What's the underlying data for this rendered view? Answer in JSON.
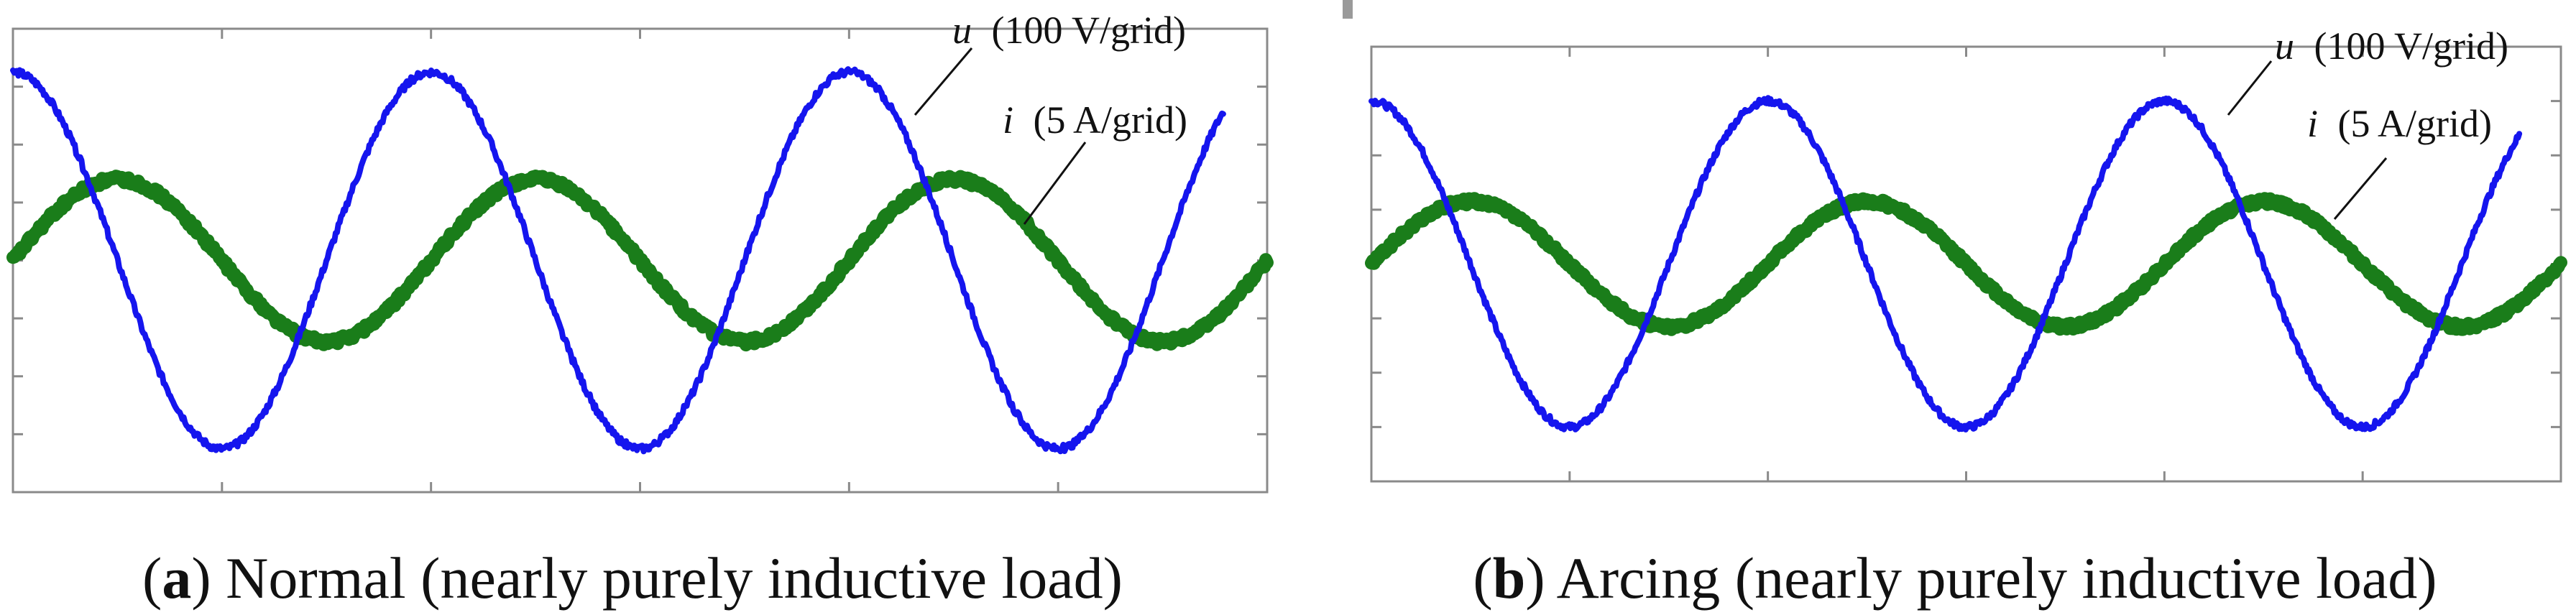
{
  "chart_data": [
    {
      "type": "line",
      "panel_label": "a",
      "caption": "Normal (nearly purely inductive load)",
      "x_range": [
        0,
        3
      ],
      "x_unit": "cycles",
      "grid": true,
      "y_range_grid": [
        -4,
        4
      ],
      "series": [
        {
          "name": "u",
          "label_var": "u",
          "label_scale": "(100 V/grid)",
          "color": "#1515ee",
          "amplitude_grid": 3.25,
          "phase_deg": 90,
          "cycles": 3
        },
        {
          "name": "i",
          "label_var": "i",
          "label_scale": "(5 A/grid)",
          "color": "#1a7d1a",
          "amplitude_grid": 1.4,
          "phase_deg": 0,
          "cycles": 3
        }
      ]
    },
    {
      "type": "line",
      "panel_label": "b",
      "caption": "Arcing (nearly purely inductive load)",
      "x_range": [
        0,
        3
      ],
      "x_unit": "cycles",
      "grid": true,
      "y_range_grid": [
        -4,
        4
      ],
      "series": [
        {
          "name": "u",
          "label_var": "u",
          "label_scale": "(100 V/grid)",
          "color": "#1515ee",
          "amplitude_grid": 3.0,
          "phase_deg": 90,
          "cycles": 3
        },
        {
          "name": "i",
          "label_var": "i",
          "label_scale": "(5 A/grid)",
          "color": "#1a7d1a",
          "amplitude_grid": 1.15,
          "phase_deg": 0,
          "cycles": 3
        }
      ]
    }
  ]
}
